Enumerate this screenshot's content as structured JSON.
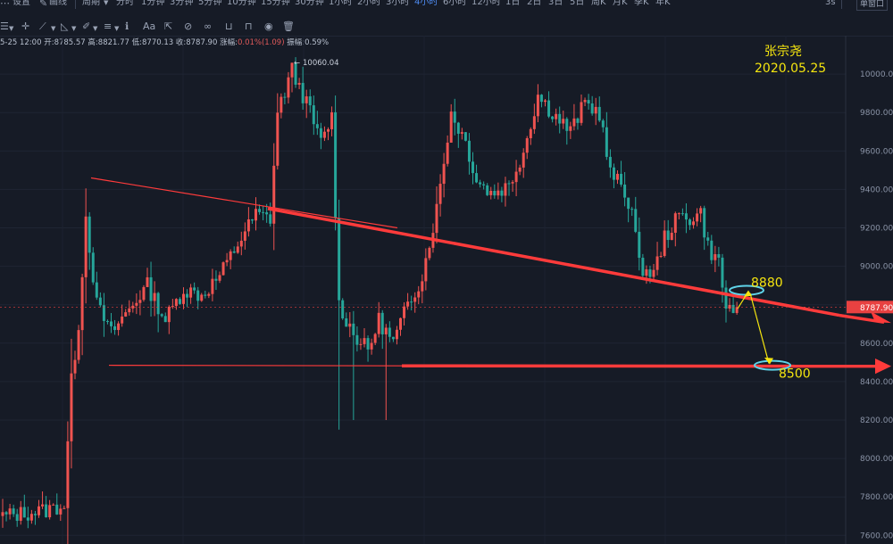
{
  "toolbar": {
    "settings_label": "设置",
    "draw_label": "画线",
    "period_label": "周期",
    "periods": [
      "分时",
      "1分钟",
      "3分钟",
      "5分钟",
      "10分钟",
      "15分钟",
      "30分钟",
      "1小时",
      "2小时",
      "3小时",
      "4小时",
      "6小时",
      "12小时",
      "1日",
      "2日",
      "3日",
      "5日",
      "周K",
      "月K",
      "季K",
      "年K"
    ],
    "active_period": "4小时",
    "right_label": "3s",
    "window_label": "单窗口"
  },
  "ohlc": {
    "time": "5-25 12:00",
    "open": "开:8785.57",
    "high": "高:8821.77",
    "low": "低:8770.13",
    "close": "收:8787.90",
    "change_label": "涨幅:",
    "change_value": "0.01%(1.09)",
    "amplitude": "振幅:0.59%"
  },
  "colors": {
    "up": "#ef5350",
    "down": "#26a69a",
    "trendline": "#ff3b3b",
    "annotation_text": "#f5e50f",
    "ellipse": "#5fd3e8",
    "price_tag": "#e84141"
  },
  "chart_data": {
    "type": "candlestick",
    "y_ticks": [
      7600,
      7800,
      8000,
      8200,
      8400,
      8600,
      8800,
      9000,
      9200,
      9400,
      9600,
      9800,
      10000
    ],
    "y_tick_labels": [
      "7600.00",
      "7800.00",
      "8000.00",
      "8200.00",
      "8400.00",
      "8600.00",
      "8800.00",
      "9000.00",
      "9200.00",
      "9400.00",
      "9600.00",
      "9800.00",
      "10000.00"
    ],
    "ylim": [
      7555,
      10200
    ],
    "last_price": 8787.9,
    "last_price_label": "8787.90",
    "max_label": "10060.04",
    "max_value": 10060.04,
    "annotations": {
      "author": "张宗尧",
      "date": "2020.05.25",
      "level_high": "8880",
      "level_low": "8500"
    },
    "anchors": [
      [
        0,
        7700
      ],
      [
        12,
        7730
      ],
      [
        17,
        7760
      ],
      [
        19,
        8400
      ],
      [
        21,
        8700
      ],
      [
        23,
        9260
      ],
      [
        26,
        8800
      ],
      [
        30,
        8650
      ],
      [
        35,
        8780
      ],
      [
        40,
        8900
      ],
      [
        45,
        8720
      ],
      [
        50,
        8880
      ],
      [
        55,
        8850
      ],
      [
        60,
        8950
      ],
      [
        66,
        9150
      ],
      [
        70,
        9270
      ],
      [
        74,
        9250
      ],
      [
        76,
        9800
      ],
      [
        80,
        10020
      ],
      [
        84,
        9850
      ],
      [
        88,
        9640
      ],
      [
        91,
        9780
      ],
      [
        93,
        8800
      ],
      [
        97,
        8650
      ],
      [
        101,
        8560
      ],
      [
        104,
        8720
      ],
      [
        108,
        8600
      ],
      [
        112,
        8800
      ],
      [
        116,
        8950
      ],
      [
        120,
        9300
      ],
      [
        124,
        9800
      ],
      [
        128,
        9650
      ],
      [
        131,
        9450
      ],
      [
        135,
        9380
      ],
      [
        140,
        9420
      ],
      [
        144,
        9600
      ],
      [
        148,
        9890
      ],
      [
        152,
        9800
      ],
      [
        157,
        9700
      ],
      [
        161,
        9850
      ],
      [
        165,
        9800
      ],
      [
        168,
        9480
      ],
      [
        171,
        9420
      ],
      [
        174,
        9300
      ],
      [
        176,
        9000
      ],
      [
        180,
        8960
      ],
      [
        183,
        9150
      ],
      [
        187,
        9260
      ],
      [
        190,
        9250
      ],
      [
        193,
        9280
      ],
      [
        195,
        9100
      ],
      [
        198,
        9020
      ],
      [
        200,
        8780
      ],
      [
        203,
        8787.9
      ]
    ],
    "candles_count": 204
  }
}
